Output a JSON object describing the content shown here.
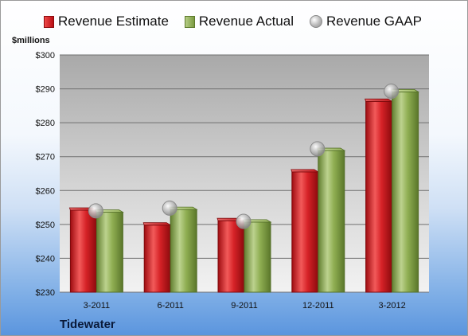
{
  "legend": {
    "estimate": "Revenue Estimate",
    "actual": "Revenue Actual",
    "gaap": "Revenue GAAP"
  },
  "ylabel": "$millions",
  "company": "Tidewater",
  "colors": {
    "estimate": "#c81c22",
    "actual": "#8aa84e",
    "gaap": "#b0b0b0"
  },
  "chart_data": {
    "type": "bar",
    "categories": [
      "3-2011",
      "6-2011",
      "9-2011",
      "12-2011",
      "3-2012"
    ],
    "series": [
      {
        "name": "Revenue Estimate",
        "values": [
          254.2,
          249.8,
          251.1,
          265.5,
          286.3
        ]
      },
      {
        "name": "Revenue Actual",
        "values": [
          253.6,
          254.4,
          250.7,
          271.8,
          289.1
        ]
      },
      {
        "name": "Revenue GAAP",
        "values": [
          254.0,
          254.8,
          250.9,
          272.3,
          289.3
        ],
        "marker": "circle"
      }
    ],
    "ylabel": "$millions",
    "ylim": [
      230,
      300
    ],
    "yticks": [
      230,
      240,
      250,
      260,
      270,
      280,
      290,
      300
    ],
    "ytick_labels": [
      "$230",
      "$240",
      "$250",
      "$260",
      "$270",
      "$280",
      "$290",
      "$300"
    ],
    "grid": true,
    "legend_position": "top"
  }
}
